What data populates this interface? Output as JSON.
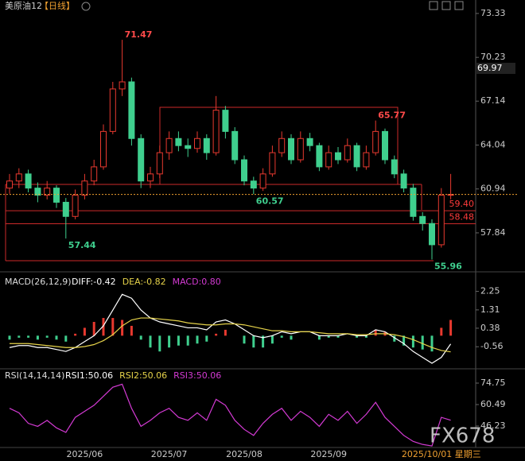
{
  "chart_data": [
    {
      "type": "candlestick",
      "title": "美原油12",
      "period": "【日线】",
      "categories": [
        null,
        null,
        null,
        null,
        null,
        null,
        null,
        null,
        "2025/06",
        null,
        null,
        null,
        null,
        null,
        null,
        null,
        null,
        "2025/07",
        null,
        null,
        null,
        null,
        null,
        null,
        null,
        "2025/08",
        null,
        null,
        null,
        null,
        null,
        null,
        null,
        null,
        "2025/09",
        null,
        null,
        null,
        null,
        null,
        null,
        null,
        null,
        null,
        null,
        null,
        "2025/10/01 星期三",
        null
      ],
      "ohlc": [
        [
          61,
          62,
          60.6,
          61.5
        ],
        [
          61.5,
          62.4,
          61,
          62
        ],
        [
          62,
          62.3,
          60.7,
          61
        ],
        [
          61,
          61.4,
          60,
          60.5
        ],
        [
          60.5,
          61.5,
          60.2,
          61
        ],
        [
          61,
          61.2,
          59.6,
          60
        ],
        [
          60,
          60.3,
          57.44,
          59
        ],
        [
          59,
          60.9,
          58.8,
          60.5
        ],
        [
          60.5,
          62,
          60.2,
          61.5
        ],
        [
          61.5,
          63,
          61.2,
          62.5
        ],
        [
          62.5,
          65.5,
          62.3,
          65
        ],
        [
          65,
          68.5,
          64.8,
          68
        ],
        [
          68,
          71.47,
          67.5,
          68.5
        ],
        [
          68.5,
          68.8,
          64,
          64.5
        ],
        [
          64.5,
          64.8,
          61,
          61.5
        ],
        [
          61.5,
          62.5,
          61,
          62
        ],
        [
          62,
          64,
          61.7,
          63.5
        ],
        [
          63.5,
          65,
          63,
          64.5
        ],
        [
          64.5,
          65,
          63.6,
          64
        ],
        [
          64,
          64.5,
          63.2,
          63.8
        ],
        [
          63.8,
          65,
          63.5,
          64.5
        ],
        [
          64.5,
          64.8,
          63,
          63.5
        ],
        [
          63.5,
          67.5,
          63.3,
          66.5
        ],
        [
          66.5,
          66.8,
          64.5,
          65
        ],
        [
          65,
          65.3,
          62.7,
          63
        ],
        [
          63,
          63.3,
          61.2,
          61.5
        ],
        [
          61.5,
          61.8,
          60.57,
          61
        ],
        [
          61,
          62.4,
          60.8,
          62
        ],
        [
          62,
          64,
          61.8,
          63.5
        ],
        [
          63.5,
          65,
          63.2,
          64.5
        ],
        [
          64.5,
          64.8,
          62.7,
          63
        ],
        [
          63,
          65,
          62.8,
          64.5
        ],
        [
          64.5,
          64.9,
          63.6,
          64
        ],
        [
          64,
          64.2,
          62.2,
          62.5
        ],
        [
          62.5,
          64,
          62.3,
          63.5
        ],
        [
          63.5,
          63.9,
          62.7,
          63
        ],
        [
          63,
          64.5,
          62.8,
          64
        ],
        [
          64,
          64.2,
          62.2,
          62.5
        ],
        [
          62.5,
          64,
          62.3,
          63.5
        ],
        [
          63.5,
          65.77,
          63.3,
          65
        ],
        [
          65,
          65.2,
          62.7,
          63
        ],
        [
          63,
          63.3,
          61.7,
          62
        ],
        [
          62,
          62.3,
          60.7,
          61
        ],
        [
          61,
          61.3,
          58.7,
          59
        ],
        [
          59,
          59.3,
          58,
          58.5
        ],
        [
          58.5,
          58.8,
          55.96,
          57
        ],
        [
          57,
          61,
          56.8,
          60.5
        ],
        [
          60.5,
          62,
          60.2,
          60.55
        ]
      ],
      "up_color": "#e8392f",
      "down_color": "#3fcf8e",
      "annotations": [
        71.47,
        65.77,
        60.57,
        57.44,
        55.96
      ],
      "levels": [
        {
          "value": 59.4,
          "label": "59.40"
        },
        {
          "value": 58.48,
          "label": "58.48"
        }
      ],
      "price_tag": 69.97,
      "ylim": [
        55.2,
        74.28
      ],
      "yticks": [
        73.33,
        70.23,
        67.14,
        64.04,
        60.94,
        57.84
      ]
    },
    {
      "type": "macd",
      "title": "MACD(26,12,9)",
      "legend": [
        {
          "text": "DIFF:-0.42",
          "color": "#ffffff"
        },
        {
          "text": "DEA:-0.82",
          "color": "#e6d34a"
        },
        {
          "text": "MACD:0.80",
          "color": "#d33ad3"
        }
      ],
      "series": [
        {
          "color": "#ffffff",
          "values": [
            -0.6,
            -0.5,
            -0.5,
            -0.6,
            -0.6,
            -0.7,
            -0.8,
            -0.6,
            -0.3,
            0.0,
            0.5,
            1.3,
            2.1,
            1.9,
            1.3,
            0.9,
            0.7,
            0.6,
            0.5,
            0.4,
            0.4,
            0.3,
            0.7,
            0.8,
            0.6,
            0.3,
            0.0,
            -0.1,
            0.0,
            0.2,
            0.1,
            0.2,
            0.2,
            0.0,
            0.0,
            0.0,
            0.1,
            0.0,
            0.0,
            0.3,
            0.2,
            -0.1,
            -0.4,
            -0.8,
            -1.1,
            -1.4,
            -1.1,
            -0.42
          ]
        },
        {
          "color": "#e6d34a",
          "values": [
            -0.4,
            -0.4,
            -0.4,
            -0.45,
            -0.5,
            -0.55,
            -0.6,
            -0.6,
            -0.55,
            -0.45,
            -0.25,
            0.05,
            0.5,
            0.8,
            0.9,
            0.9,
            0.85,
            0.8,
            0.75,
            0.65,
            0.6,
            0.55,
            0.55,
            0.6,
            0.6,
            0.55,
            0.45,
            0.35,
            0.25,
            0.25,
            0.2,
            0.2,
            0.2,
            0.15,
            0.1,
            0.1,
            0.1,
            0.05,
            0.05,
            0.1,
            0.1,
            0.05,
            -0.05,
            -0.2,
            -0.4,
            -0.6,
            -0.75,
            -0.82
          ]
        }
      ],
      "histogram": [
        -0.2,
        -0.1,
        -0.1,
        -0.2,
        -0.1,
        -0.2,
        -0.3,
        0.1,
        0.4,
        0.7,
        0.9,
        0.9,
        0.8,
        0.5,
        -0.2,
        -0.6,
        -0.8,
        -0.6,
        -0.5,
        -0.5,
        -0.4,
        -0.3,
        0.1,
        0.3,
        0.0,
        -0.4,
        -0.6,
        -0.6,
        -0.4,
        -0.1,
        -0.2,
        0.0,
        0.0,
        -0.2,
        -0.1,
        -0.1,
        0.0,
        -0.1,
        -0.1,
        0.3,
        0.2,
        -0.3,
        -0.5,
        -0.6,
        -0.7,
        -0.8,
        0.4,
        0.8
      ],
      "ylim": [
        -1.68,
        3.04
      ],
      "yticks": [
        2.25,
        1.31,
        0.38,
        -0.56
      ]
    },
    {
      "type": "rsi",
      "title": "RSI(14,14,14)",
      "legend": [
        {
          "text": "RSI1:50.06",
          "color": "#ffffff"
        },
        {
          "text": "RSI2:50.06",
          "color": "#e6d34a"
        },
        {
          "text": "RSI3:50.06",
          "color": "#d33ad3"
        }
      ],
      "series": [
        {
          "color": "#d33ad3",
          "values": [
            58,
            55,
            48,
            46,
            50,
            45,
            42,
            52,
            56,
            60,
            66,
            72,
            74,
            58,
            46,
            50,
            55,
            58,
            52,
            50,
            55,
            50,
            64,
            60,
            50,
            44,
            40,
            48,
            54,
            58,
            50,
            56,
            52,
            46,
            54,
            50,
            56,
            48,
            54,
            62,
            52,
            46,
            40,
            36,
            34,
            33,
            52,
            50.06
          ]
        }
      ],
      "ylim": [
        31.96,
        83.2
      ],
      "yticks": [
        74.75,
        60.49,
        46.23
      ]
    }
  ]
}
